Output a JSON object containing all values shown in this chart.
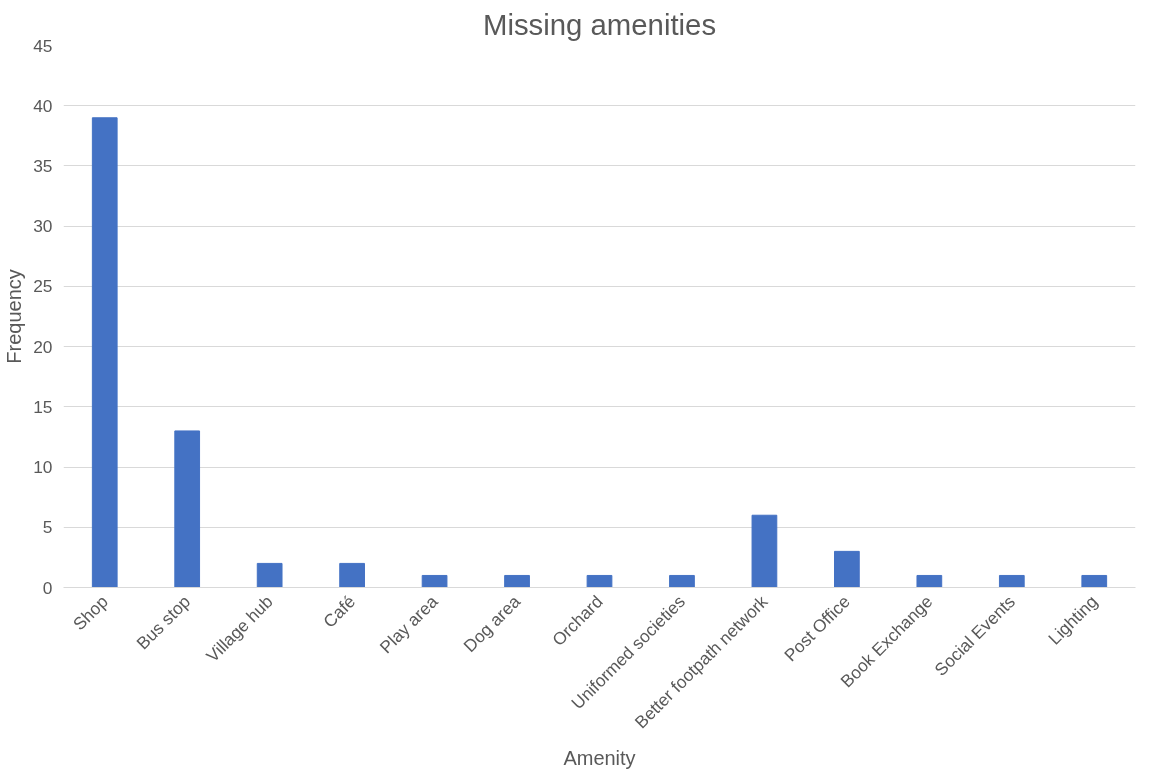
{
  "chart_data": {
    "type": "bar",
    "title": "Missing amenities",
    "xlabel": "Amenity",
    "ylabel": "Frequency",
    "categories": [
      "Shop",
      "Bus stop",
      "Village hub",
      "Café",
      "Play area",
      "Dog area",
      "Orchard",
      "Uniformed societies",
      "Better footpath network",
      "Post Office",
      "Book Exchange",
      "Social Events",
      "Lighting"
    ],
    "values": [
      39,
      13,
      2,
      2,
      1,
      1,
      1,
      1,
      6,
      3,
      1,
      1,
      1
    ],
    "color": "#4472c4",
    "ylim": [
      0,
      45
    ],
    "yticks": [
      0,
      5,
      10,
      15,
      20,
      25,
      30,
      35,
      40,
      45
    ],
    "grid": "y"
  }
}
